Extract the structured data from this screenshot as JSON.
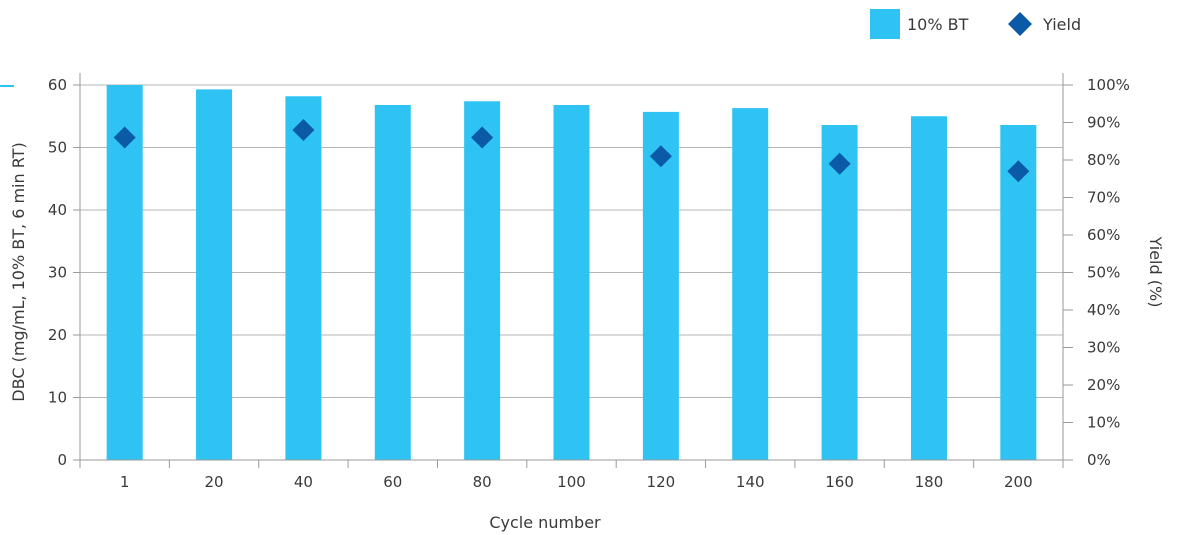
{
  "chart_data": {
    "type": "bar",
    "categories": [
      "1",
      "20",
      "40",
      "60",
      "80",
      "100",
      "120",
      "140",
      "160",
      "180",
      "200"
    ],
    "series": [
      {
        "name": "10% BT",
        "type": "bar",
        "axis": "left",
        "color": "#2ec3f2",
        "values": [
          60.0,
          59.3,
          58.2,
          56.8,
          57.4,
          56.8,
          55.7,
          56.3,
          53.6,
          55.0,
          53.6
        ]
      },
      {
        "name": "Yield",
        "type": "scatter",
        "marker": "diamond",
        "axis": "right",
        "color": "#0a5aa8",
        "values": [
          86,
          88,
          86,
          81,
          79,
          77
        ],
        "at_categories": [
          "1",
          "40",
          "80",
          "120",
          "160",
          "200"
        ]
      }
    ],
    "xlabel": "Cycle number",
    "ylabel": "DBC (mg/mL, 10% BT, 6 min RT)",
    "y2label": "Yield (%)",
    "ylim": [
      0,
      60
    ],
    "y2lim": [
      0,
      100
    ],
    "yticks": [
      "0",
      "10",
      "20",
      "30",
      "40",
      "50",
      "60"
    ],
    "y2ticks": [
      "0%",
      "10%",
      "20%",
      "30%",
      "40%",
      "50%",
      "60%",
      "70%",
      "80%",
      "90%",
      "100%"
    ],
    "grid": true,
    "legend_position": "top-right",
    "legend": [
      {
        "label": "10% BT",
        "symbol": "square"
      },
      {
        "label": "Yield",
        "symbol": "diamond"
      }
    ]
  }
}
